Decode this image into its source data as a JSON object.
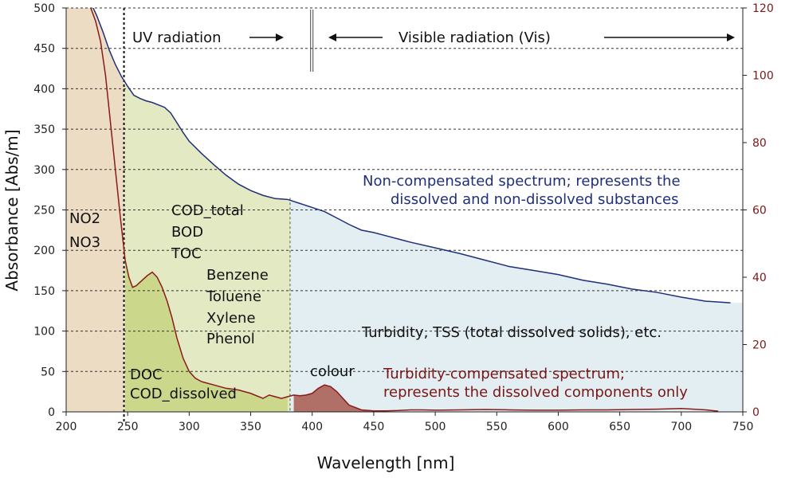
{
  "chart_data": {
    "type": "area",
    "xlabel": "Wavelength [nm]",
    "ylabel": "Absorbance [Abs/m]",
    "xlim": [
      200,
      750
    ],
    "ylim_left": [
      0,
      500
    ],
    "ylim_right": [
      0,
      120
    ],
    "x_ticks": [
      "200",
      "250",
      "300",
      "350",
      "400",
      "450",
      "500",
      "550",
      "600",
      "650",
      "700",
      "750"
    ],
    "y_ticks_left": [
      "0",
      "50",
      "100",
      "150",
      "200",
      "250",
      "300",
      "350",
      "400",
      "450",
      "500"
    ],
    "y_ticks_right": [
      "0",
      "20",
      "40",
      "60",
      "80",
      "100",
      "120"
    ],
    "grid": "horizontal dashed",
    "region_boundaries": {
      "uv_start": 247,
      "uv_vis_split": 400,
      "shaded_end": 382
    },
    "colors": {
      "region_nitrate": "#ecdcc4",
      "region_uv": "#e2e9c3",
      "region_vis": "#e2eef2",
      "compensated_fill": "#cbd88c",
      "colour_peak_fill": "#b07068",
      "non_compensated_line": "#1f2f7a",
      "compensated_line": "#8b1a1a"
    },
    "series": [
      {
        "name": "Non-compensated spectrum",
        "axis": "left",
        "x": [
          222,
          225,
          230,
          235,
          240,
          245,
          250,
          255,
          260,
          265,
          270,
          275,
          280,
          285,
          290,
          295,
          300,
          310,
          320,
          330,
          340,
          350,
          360,
          370,
          380,
          390,
          400,
          410,
          420,
          430,
          440,
          450,
          460,
          480,
          500,
          520,
          540,
          560,
          580,
          600,
          620,
          640,
          660,
          680,
          700,
          720,
          740
        ],
        "y": [
          500,
          490,
          470,
          448,
          430,
          415,
          403,
          392,
          388,
          385,
          383,
          380,
          377,
          370,
          358,
          346,
          335,
          320,
          306,
          293,
          282,
          274,
          268,
          264,
          263,
          258,
          253,
          248,
          240,
          232,
          225,
          222,
          218,
          210,
          203,
          196,
          188,
          180,
          175,
          170,
          163,
          158,
          152,
          148,
          142,
          137,
          135
        ]
      },
      {
        "name": "Turbidity-compensated spectrum",
        "axis": "right",
        "x": [
          220,
          224,
          228,
          232,
          236,
          240,
          244,
          248,
          251,
          254,
          257,
          260,
          263,
          266,
          270,
          274,
          278,
          282,
          286,
          290,
          295,
          300,
          305,
          310,
          320,
          330,
          340,
          350,
          360,
          365,
          370,
          375,
          380,
          385,
          390,
          395,
          400,
          405,
          410,
          415,
          420,
          425,
          430,
          440,
          450,
          460,
          470,
          480,
          490,
          500,
          520,
          540,
          560,
          580,
          600,
          620,
          640,
          660,
          680,
          700,
          720,
          730
        ],
        "y": [
          120,
          116,
          110,
          100,
          86,
          72,
          58,
          45,
          40,
          37,
          37.5,
          38.5,
          39.5,
          40.5,
          41.5,
          40,
          37,
          33,
          28,
          22,
          16,
          12,
          10,
          9,
          8,
          7,
          6.5,
          5.5,
          4,
          5,
          4.5,
          4,
          4.5,
          5,
          4.8,
          5,
          5.5,
          7,
          8,
          7.5,
          6,
          4,
          2,
          0.6,
          0.3,
          0.3,
          0.4,
          0.6,
          0.6,
          0.5,
          0.6,
          0.7,
          0.6,
          0.5,
          0.5,
          0.6,
          0.6,
          0.7,
          0.8,
          1,
          0.6,
          0.2
        ]
      }
    ],
    "annotations": {
      "uv_radiation": "UV radiation",
      "visible_radiation": "Visible radiation (Vis)",
      "non_compensated_1": "Non-compensated spectrum; represents the",
      "non_compensated_2": "dissolved and non-dissolved substances",
      "no2": "NO2",
      "no3": "NO3",
      "cod_total": "COD_total",
      "bod": "BOD",
      "toc": "TOC",
      "benzene": "Benzene",
      "toluene": "Toluene",
      "xylene": "Xylene",
      "phenol": "Phenol",
      "turbidity": "Turbidity, TSS (total dissolved solids), etc.",
      "doc": "DOC",
      "cod_dissolved": "COD_dissolved",
      "colour": "colour",
      "compensated_1": "Turbidity-compensated spectrum;",
      "compensated_2": "represents the dissolved components only"
    }
  }
}
